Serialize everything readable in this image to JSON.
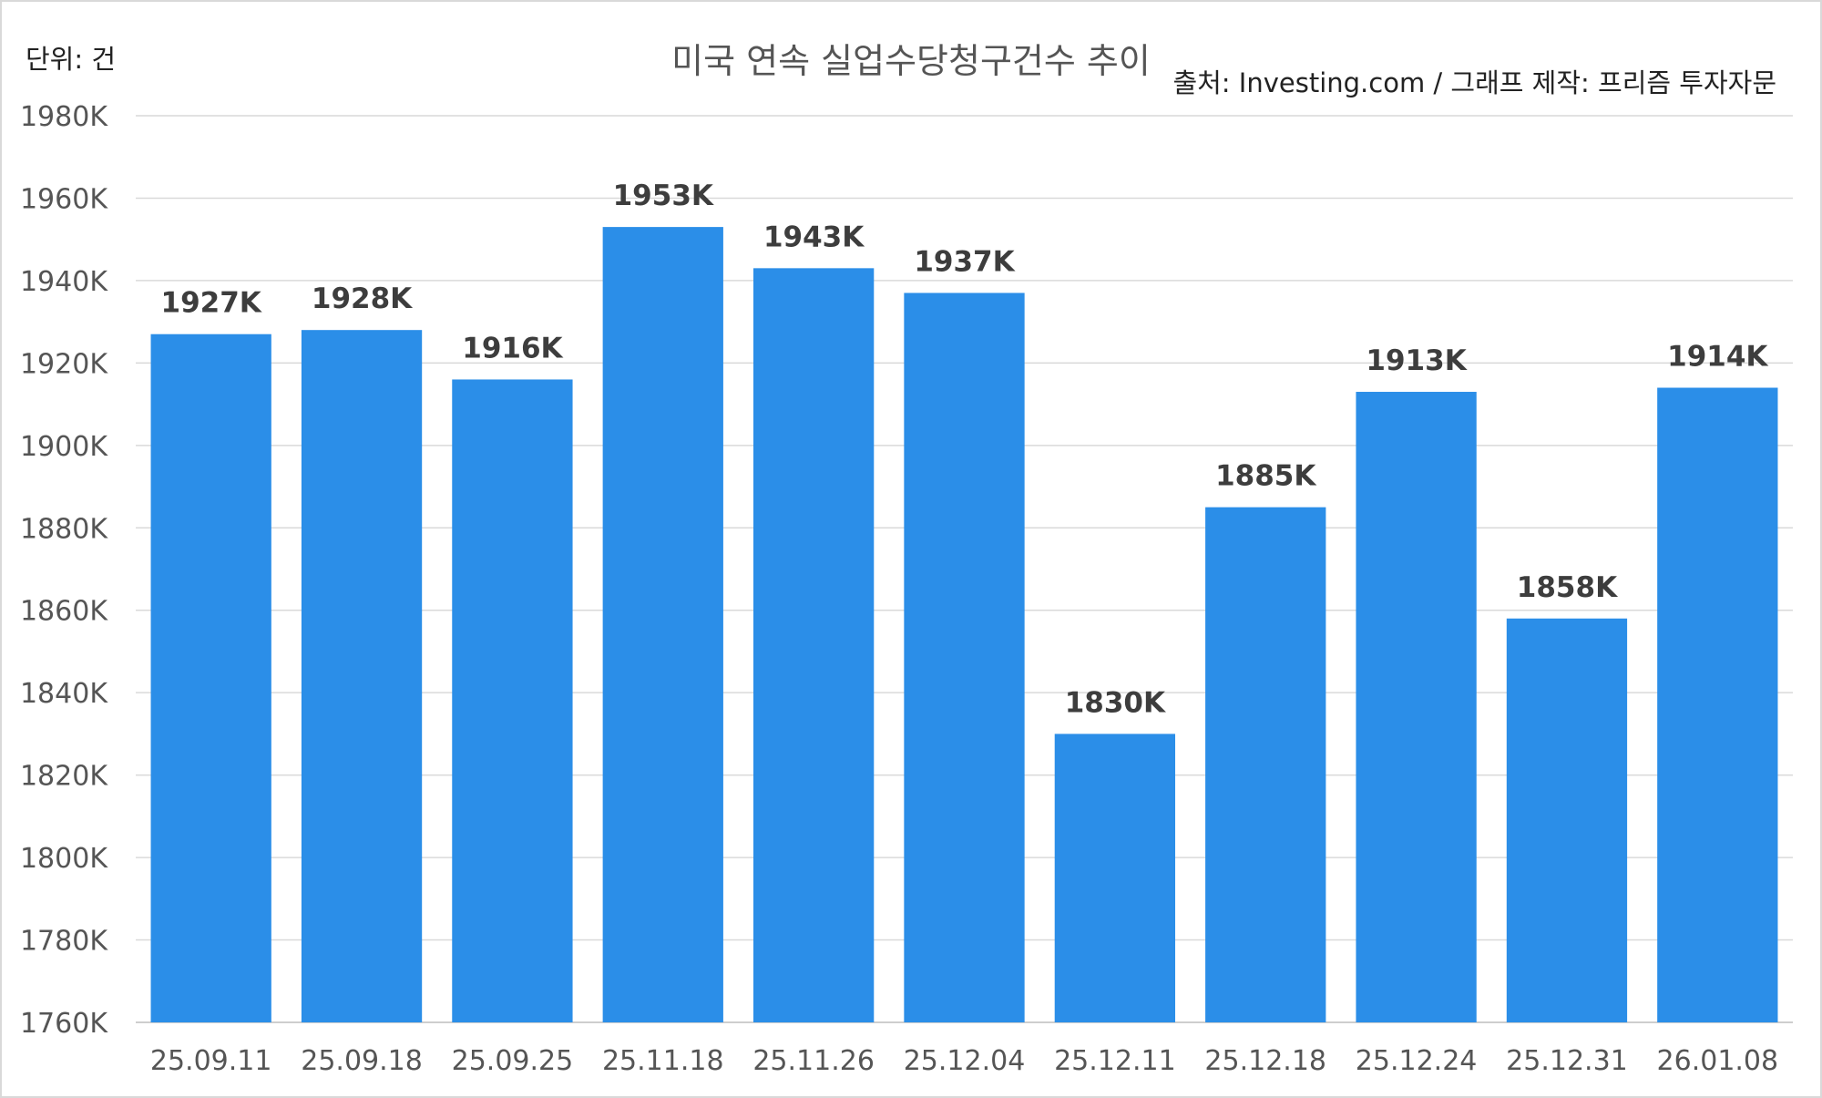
{
  "unit_label": "단위: 건",
  "title": "미국 연속 실업수당청구건수 추이",
  "source": "출처: Investing.com / 그래프 제작: 프리즘 투자자문",
  "colors": {
    "bar": "#2b8ee8",
    "grid": "#d9d9d9"
  },
  "chart_data": {
    "type": "bar",
    "title": "미국 연속 실업수당청구건수 추이",
    "xlabel": "",
    "ylabel": "",
    "categories": [
      "25.09.11",
      "25.09.18",
      "25.09.25",
      "25.11.18",
      "25.11.26",
      "25.12.04",
      "25.12.11",
      "25.12.18",
      "25.12.24",
      "25.12.31",
      "26.01.08"
    ],
    "values": [
      1927,
      1928,
      1916,
      1953,
      1943,
      1937,
      1830,
      1885,
      1913,
      1858,
      1914
    ],
    "data_labels": [
      "1927K",
      "1928K",
      "1916K",
      "1953K",
      "1943K",
      "1937K",
      "1830K",
      "1885K",
      "1913K",
      "1858K",
      "1914K"
    ],
    "ylim": [
      1760,
      1980
    ],
    "yticks": [
      1760,
      1780,
      1800,
      1820,
      1840,
      1860,
      1880,
      1900,
      1920,
      1940,
      1960,
      1980
    ],
    "ytick_labels": [
      "1760K",
      "1780K",
      "1800K",
      "1820K",
      "1840K",
      "1860K",
      "1880K",
      "1900K",
      "1920K",
      "1940K",
      "1960K",
      "1980K"
    ],
    "grid": true
  }
}
